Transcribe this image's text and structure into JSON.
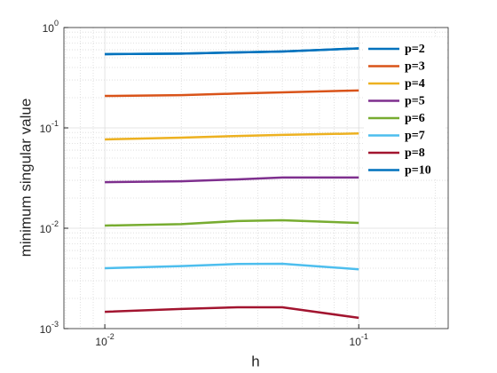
{
  "chart_data": {
    "type": "line",
    "xlabel": "h",
    "ylabel": "minimum singular value",
    "xscale": "log",
    "yscale": "log",
    "grid": true,
    "minor_grid": true,
    "legend": "upper right",
    "x": [
      0.01,
      0.02,
      0.0333,
      0.05,
      0.1
    ],
    "series": [
      {
        "name": "p=2",
        "color": "#0072bd",
        "values": [
          0.543,
          0.55,
          0.565,
          0.577,
          0.62
        ]
      },
      {
        "name": "p=3",
        "color": "#d95319",
        "values": [
          0.208,
          0.212,
          0.22,
          0.226,
          0.236
        ]
      },
      {
        "name": "p=4",
        "color": "#edb120",
        "values": [
          0.0767,
          0.0799,
          0.083,
          0.0852,
          0.088
        ]
      },
      {
        "name": "p=5",
        "color": "#7e2f8e",
        "values": [
          0.0288,
          0.0294,
          0.0307,
          0.032,
          0.032
        ]
      },
      {
        "name": "p=6",
        "color": "#77ac30",
        "values": [
          0.01063,
          0.011,
          0.0118,
          0.012,
          0.0113
        ]
      },
      {
        "name": "p=7",
        "color": "#4dbeee",
        "values": [
          0.004,
          0.0042,
          0.0044,
          0.00443,
          0.0039
        ]
      },
      {
        "name": "p=8",
        "color": "#a2142f",
        "values": [
          0.00147,
          0.00157,
          0.00163,
          0.00163,
          0.00128
        ]
      },
      {
        "name": "p=10",
        "color": "#0072bd",
        "values": [
          0.543,
          0.55,
          0.565,
          0.577,
          0.62
        ]
      }
    ],
    "xlim": [
      0.0069,
      0.225
    ],
    "ylim": [
      0.001,
      1
    ],
    "xticks": [
      {
        "value": 0.01,
        "label": "10^-2"
      },
      {
        "value": 0.1,
        "label": "10^-1"
      }
    ],
    "yticks": [
      {
        "value": 0.001,
        "label": "10^-3"
      },
      {
        "value": 0.01,
        "label": "10^-2"
      },
      {
        "value": 0.1,
        "label": "10^-1"
      },
      {
        "value": 1,
        "label": "10^0"
      }
    ],
    "xminorticks": [
      0.007,
      0.008,
      0.009,
      0.02,
      0.03,
      0.04,
      0.05,
      0.06,
      0.07,
      0.08,
      0.09,
      0.2
    ],
    "yminorticks": [
      0.002,
      0.003,
      0.004,
      0.005,
      0.006,
      0.007,
      0.008,
      0.009,
      0.02,
      0.03,
      0.04,
      0.05,
      0.06,
      0.07,
      0.08,
      0.09,
      0.2,
      0.3,
      0.4,
      0.5,
      0.6,
      0.7,
      0.8,
      0.9
    ]
  }
}
